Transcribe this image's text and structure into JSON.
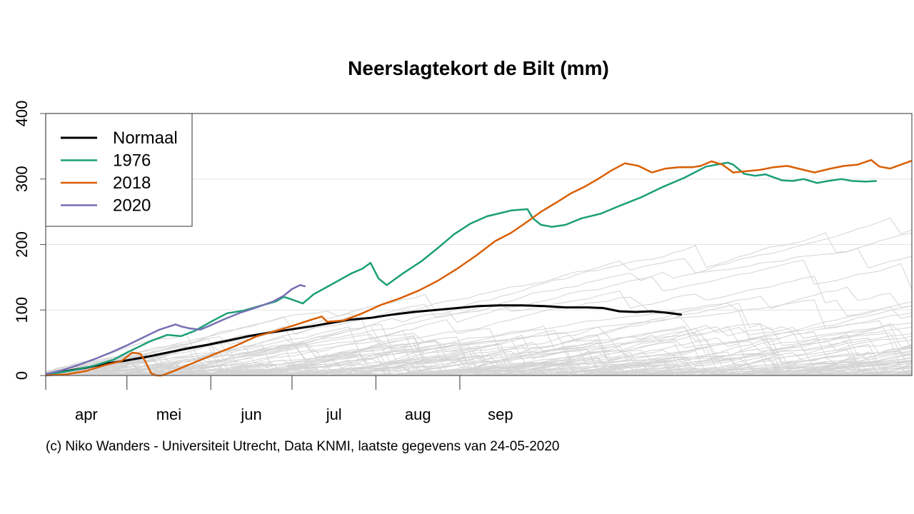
{
  "chart_data": {
    "type": "line",
    "title": "Neerslagtekort de Bilt (mm)",
    "xlabel": "",
    "ylabel": "",
    "x_unit": "days since 1 april",
    "ylim": [
      0,
      400
    ],
    "yticks": [
      0,
      100,
      200,
      300,
      400
    ],
    "month_ticks": [
      "apr",
      "mei",
      "jun",
      "jul",
      "aug",
      "sep"
    ],
    "grid": "horizontal",
    "legend_position": "top-left",
    "background_years": "grey lines (other years), values not legible",
    "series": [
      {
        "name": "Normaal",
        "color": "#000000",
        "width": 3,
        "points": [
          [
            0,
            2
          ],
          [
            8,
            7
          ],
          [
            15,
            12
          ],
          [
            22,
            18
          ],
          [
            30,
            23
          ],
          [
            38,
            29
          ],
          [
            45,
            35
          ],
          [
            52,
            41
          ],
          [
            60,
            47
          ],
          [
            67,
            53
          ],
          [
            75,
            60
          ],
          [
            82,
            65
          ],
          [
            90,
            70
          ],
          [
            98,
            75
          ],
          [
            105,
            80
          ],
          [
            112,
            85
          ],
          [
            120,
            88
          ],
          [
            128,
            93
          ],
          [
            136,
            97
          ],
          [
            144,
            100
          ],
          [
            152,
            103
          ],
          [
            160,
            106
          ],
          [
            168,
            107
          ],
          [
            176,
            107
          ],
          [
            184,
            106
          ],
          [
            192,
            104
          ],
          [
            200,
            104
          ],
          [
            206,
            103
          ],
          [
            212,
            98
          ],
          [
            218,
            97
          ],
          [
            224,
            98
          ],
          [
            229,
            96
          ],
          [
            235,
            93
          ]
        ]
      },
      {
        "name": "1976",
        "color": "#1b9e77",
        "width": 2.5,
        "points": [
          [
            0,
            1
          ],
          [
            10,
            8
          ],
          [
            18,
            15
          ],
          [
            25,
            24
          ],
          [
            30,
            35
          ],
          [
            36,
            47
          ],
          [
            39,
            53
          ],
          [
            45,
            62
          ],
          [
            50,
            60
          ],
          [
            55,
            68
          ],
          [
            61,
            82
          ],
          [
            67,
            95
          ],
          [
            73,
            99
          ],
          [
            79,
            106
          ],
          [
            85,
            113
          ],
          [
            88,
            120
          ],
          [
            91,
            116
          ],
          [
            95,
            110
          ],
          [
            99,
            124
          ],
          [
            106,
            140
          ],
          [
            113,
            156
          ],
          [
            117,
            163
          ],
          [
            120,
            172
          ],
          [
            123,
            148
          ],
          [
            126,
            138
          ],
          [
            132,
            156
          ],
          [
            139,
            175
          ],
          [
            145,
            195
          ],
          [
            151,
            216
          ],
          [
            157,
            232
          ],
          [
            163,
            243
          ],
          [
            168,
            248
          ],
          [
            172,
            252
          ],
          [
            178,
            254
          ],
          [
            180,
            240
          ],
          [
            183,
            230
          ],
          [
            187,
            227
          ],
          [
            192,
            230
          ],
          [
            198,
            240
          ],
          [
            205,
            247
          ],
          [
            212,
            259
          ],
          [
            220,
            272
          ],
          [
            228,
            288
          ],
          [
            236,
            302
          ],
          [
            244,
            319
          ],
          [
            252,
            325
          ],
          [
            254,
            322
          ],
          [
            258,
            308
          ],
          [
            262,
            305
          ],
          [
            266,
            307
          ],
          [
            272,
            298
          ],
          [
            276,
            297
          ],
          [
            280,
            300
          ],
          [
            285,
            294
          ],
          [
            289,
            297
          ],
          [
            294,
            300
          ],
          [
            298,
            297
          ],
          [
            303,
            296
          ],
          [
            307,
            297
          ]
        ]
      },
      {
        "name": "2018",
        "color": "#d95f02",
        "width": 2.5,
        "points": [
          [
            0,
            0
          ],
          [
            8,
            2
          ],
          [
            15,
            7
          ],
          [
            22,
            16
          ],
          [
            28,
            22
          ],
          [
            32,
            35
          ],
          [
            35,
            33
          ],
          [
            37,
            20
          ],
          [
            39,
            3
          ],
          [
            41,
            0
          ],
          [
            43,
            0
          ],
          [
            48,
            8
          ],
          [
            55,
            20
          ],
          [
            62,
            32
          ],
          [
            70,
            45
          ],
          [
            78,
            60
          ],
          [
            85,
            68
          ],
          [
            92,
            77
          ],
          [
            98,
            85
          ],
          [
            102,
            90
          ],
          [
            104,
            82
          ],
          [
            110,
            84
          ],
          [
            117,
            95
          ],
          [
            124,
            108
          ],
          [
            131,
            118
          ],
          [
            138,
            130
          ],
          [
            145,
            145
          ],
          [
            152,
            163
          ],
          [
            159,
            183
          ],
          [
            166,
            205
          ],
          [
            172,
            218
          ],
          [
            178,
            235
          ],
          [
            183,
            250
          ],
          [
            189,
            265
          ],
          [
            194,
            278
          ],
          [
            199,
            288
          ],
          [
            204,
            300
          ],
          [
            209,
            313
          ],
          [
            214,
            324
          ],
          [
            219,
            320
          ],
          [
            224,
            310
          ],
          [
            229,
            316
          ],
          [
            234,
            318
          ],
          [
            239,
            318
          ],
          [
            242,
            320
          ],
          [
            246,
            327
          ],
          [
            250,
            322
          ],
          [
            254,
            310
          ],
          [
            259,
            312
          ],
          [
            264,
            314
          ],
          [
            269,
            318
          ],
          [
            274,
            320
          ],
          [
            279,
            315
          ],
          [
            284,
            310
          ],
          [
            290,
            316
          ],
          [
            295,
            320
          ],
          [
            300,
            322
          ],
          [
            305,
            329
          ],
          [
            308,
            319
          ],
          [
            312,
            316
          ],
          [
            316,
            322
          ],
          [
            320,
            328
          ]
        ]
      },
      {
        "name": "2020",
        "color": "#7570b3",
        "width": 2.5,
        "points": [
          [
            0,
            2
          ],
          [
            6,
            8
          ],
          [
            12,
            16
          ],
          [
            18,
            25
          ],
          [
            24,
            35
          ],
          [
            30,
            46
          ],
          [
            36,
            58
          ],
          [
            42,
            70
          ],
          [
            48,
            78
          ],
          [
            50,
            75
          ],
          [
            53,
            72
          ],
          [
            57,
            70
          ],
          [
            60,
            75
          ],
          [
            66,
            86
          ],
          [
            72,
            96
          ],
          [
            78,
            104
          ],
          [
            84,
            113
          ],
          [
            88,
            122
          ],
          [
            91,
            132
          ],
          [
            94,
            138
          ],
          [
            96,
            136
          ]
        ]
      }
    ]
  },
  "credit": "(c) Niko Wanders - Universiteit Utrecht, Data KNMI, laatste gegevens van 24-05-2020"
}
